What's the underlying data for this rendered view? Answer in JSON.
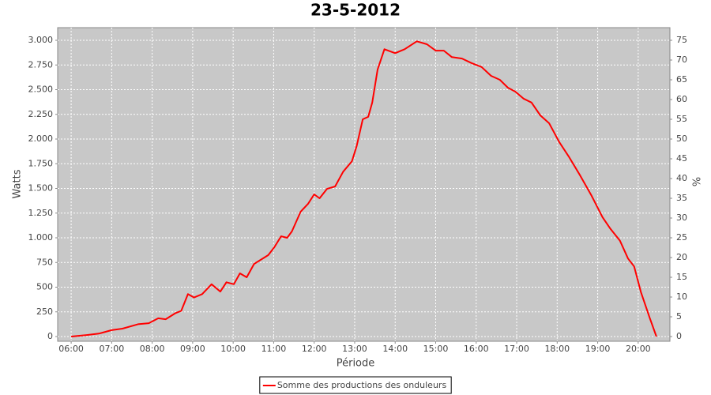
{
  "chart_data": {
    "type": "line",
    "title": "23-5-2012",
    "x_label": "Période",
    "y_label": "Watts",
    "y2_label": "%",
    "x": [
      "06:00",
      "06:23",
      "06:41",
      "07:00",
      "07:16",
      "07:39",
      "07:55",
      "08:09",
      "08:20",
      "08:34",
      "08:43",
      "08:53",
      "09:02",
      "09:14",
      "09:28",
      "09:41",
      "09:50",
      "10:01",
      "10:10",
      "10:20",
      "10:31",
      "10:52",
      "11:01",
      "11:11",
      "11:20",
      "11:27",
      "11:40",
      "11:51",
      "12:00",
      "12:08",
      "12:19",
      "12:31",
      "12:43",
      "12:56",
      "13:03",
      "13:12",
      "13:20",
      "13:26",
      "13:34",
      "13:44",
      "14:00",
      "14:14",
      "14:32",
      "14:47",
      "15:00",
      "15:12",
      "15:24",
      "15:39",
      "15:53",
      "16:08",
      "16:22",
      "16:35",
      "16:47",
      "16:58",
      "17:10",
      "17:22",
      "17:35",
      "17:48",
      "18:03",
      "18:17",
      "18:34",
      "18:51",
      "19:07",
      "19:19",
      "19:33",
      "19:45",
      "19:54",
      "20:04",
      "20:17",
      "20:27"
    ],
    "series": [
      {
        "name": "Somme des productions des onduleurs",
        "color": "#ff0000",
        "values": [
          0,
          15,
          30,
          65,
          80,
          125,
          135,
          185,
          175,
          235,
          260,
          430,
          395,
          430,
          530,
          455,
          550,
          530,
          640,
          600,
          735,
          825,
          905,
          1015,
          1000,
          1065,
          1265,
          1345,
          1440,
          1400,
          1495,
          1520,
          1670,
          1775,
          1930,
          2200,
          2225,
          2370,
          2705,
          2910,
          2870,
          2910,
          2990,
          2960,
          2895,
          2895,
          2830,
          2815,
          2770,
          2730,
          2640,
          2600,
          2520,
          2480,
          2410,
          2370,
          2240,
          2160,
          1970,
          1825,
          1630,
          1425,
          1210,
          1090,
          970,
          790,
          710,
          450,
          190,
          0
        ]
      }
    ],
    "xlim": [
      "05:40",
      "20:47"
    ],
    "xticks": [
      "06:00",
      "07:00",
      "08:00",
      "09:00",
      "10:00",
      "11:00",
      "12:00",
      "13:00",
      "14:00",
      "15:00",
      "16:00",
      "17:00",
      "18:00",
      "19:00",
      "20:00"
    ],
    "ylim": [
      -48,
      3128
    ],
    "yticks": [
      0,
      250,
      500,
      750,
      {
        "value": 1000,
        "label": "1.000"
      },
      {
        "value": 1250,
        "label": "1.250"
      },
      {
        "value": 1500,
        "label": "1.500"
      },
      {
        "value": 1750,
        "label": "1.750"
      },
      {
        "value": 2000,
        "label": "2.000"
      },
      {
        "value": 2250,
        "label": "2.250"
      },
      {
        "value": 2500,
        "label": "2.500"
      },
      {
        "value": 2750,
        "label": "2.750"
      },
      {
        "value": 3000,
        "label": "3.000"
      }
    ],
    "y2lim": [
      -1.2,
      78.2
    ],
    "y2ticks": [
      0,
      5,
      10,
      15,
      20,
      25,
      30,
      35,
      40,
      45,
      50,
      55,
      60,
      65,
      70,
      75
    ],
    "grid": true,
    "legend": "bottom",
    "plot_background": "#c8c8c8"
  }
}
